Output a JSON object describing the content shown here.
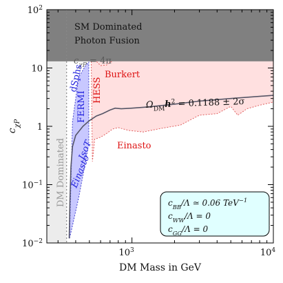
{
  "chart_data": {
    "type": "area",
    "xlabel": "DM Mass in GeV",
    "ylabel": "c_{χP}",
    "xscale": "log",
    "yscale": "log",
    "xlim": [
      250,
      10000
    ],
    "ylim": [
      0.01,
      100
    ],
    "x_ticks": [
      {
        "value": 1000,
        "base": "10",
        "exp": "3"
      },
      {
        "value": 10000,
        "base": "10",
        "exp": "4"
      }
    ],
    "y_ticks": [
      {
        "value": 0.01,
        "base": "10",
        "exp": "−2"
      },
      {
        "value": 0.1,
        "base": "10",
        "exp": "−1"
      },
      {
        "value": 1,
        "label": "1"
      },
      {
        "value": 10,
        "label": "10"
      },
      {
        "value": 100,
        "base": "10",
        "exp": "2"
      }
    ],
    "regions": [
      {
        "name": "SM Dominated",
        "y_from": 13,
        "y_to": 100,
        "color": "#808080"
      },
      {
        "name": "DM Dominated",
        "x_from": 250,
        "x_to": 345,
        "color": "#ececec"
      },
      {
        "name": "HESS",
        "color": "#ffe0e0",
        "edge": "#e06060",
        "upper": [
          [
            515,
            13
          ],
          [
            10000,
            13
          ]
        ],
        "lower_burkert": [
          [
            515,
            13
          ],
          [
            560,
            13
          ],
          [
            600,
            11
          ],
          [
            660,
            11.2
          ],
          [
            720,
            13
          ]
        ],
        "lower_einasto": [
          [
            515,
            13
          ],
          [
            525,
            0.25
          ],
          [
            545,
            0.6
          ],
          [
            600,
            0.65
          ],
          [
            660,
            0.75
          ],
          [
            730,
            0.9
          ],
          [
            800,
            0.95
          ],
          [
            950,
            0.85
          ],
          [
            1200,
            0.8
          ],
          [
            1600,
            0.92
          ],
          [
            2200,
            1.05
          ],
          [
            3000,
            1.55
          ],
          [
            4000,
            1.65
          ],
          [
            5000,
            2.2
          ],
          [
            5600,
            1.55
          ],
          [
            6500,
            2.0
          ],
          [
            8000,
            2.3
          ],
          [
            10000,
            2.6
          ]
        ]
      },
      {
        "name": "FERMI",
        "color": "#c8c8ff",
        "edge": "#4040cc",
        "boundary": [
          [
            362,
            0.012
          ],
          [
            380,
            1.2
          ],
          [
            420,
            7
          ],
          [
            470,
            11
          ],
          [
            495,
            12.6
          ],
          [
            495,
            0.5
          ],
          [
            470,
            0.25
          ],
          [
            420,
            0.06
          ],
          [
            380,
            0.02
          ],
          [
            362,
            0.012
          ]
        ]
      }
    ],
    "series": [
      {
        "name": "Ω_DM h² = 0.1188 ± 2σ",
        "color": "#555566",
        "points": [
          [
            360,
            0.012
          ],
          [
            364,
            0.05
          ],
          [
            370,
            0.2
          ],
          [
            380,
            0.45
          ],
          [
            400,
            0.7
          ],
          [
            450,
            1.0
          ],
          [
            500,
            1.25
          ],
          [
            560,
            1.5
          ],
          [
            620,
            1.65
          ],
          [
            700,
            1.9
          ],
          [
            760,
            2.05
          ],
          [
            840,
            2.0
          ],
          [
            1000,
            2.05
          ],
          [
            1300,
            2.15
          ],
          [
            2000,
            2.4
          ],
          [
            3000,
            2.7
          ],
          [
            5000,
            3.0
          ],
          [
            10000,
            3.4
          ]
        ]
      }
    ],
    "reference_lines": [
      {
        "axis": "x",
        "value": 345,
        "style": "dotted",
        "color": "#888888"
      }
    ],
    "annotations": {
      "sm_line1": "SM Dominated",
      "sm_line2": "Photon Fusion",
      "unitarity": "c_{χP} = 4π",
      "dm_dominated": "DM Dominated",
      "dsphs": "dSphs",
      "fermi": "FERMI",
      "isot": "IsoT",
      "einasto_fermi": "Einasto",
      "hess": "HESS",
      "burkert": "Burkert",
      "einasto_hess": "Einasto",
      "relic_lhs": "Ω",
      "relic_sub": "DM",
      "relic_h": "h",
      "relic_sup": "2",
      "relic_rhs": " = 0.1188 ± 2σ"
    },
    "legend_box": {
      "line1_a": "c",
      "line1_sub": "BB",
      "line1_b": "/Λ ≃ 0.06 TeV",
      "line1_sup": "−1",
      "line2_a": "c",
      "line2_sub": "WW",
      "line2_b": "/Λ = 0",
      "line3_a": "c",
      "line3_sub": "GG",
      "line3_b": "/Λ = 0"
    },
    "colors": {
      "sm_fill": "#808080",
      "dm_fill": "#ececec",
      "hess_fill": "#ffe0e0",
      "hess_edge": "#e06060",
      "hess_text": "#dd1111",
      "fermi_fill": "#c8c8ff",
      "fermi_edge": "#4040cc",
      "fermi_text": "#2222dd",
      "relic_line": "#555566",
      "box_fill": "#e0ffff"
    }
  }
}
